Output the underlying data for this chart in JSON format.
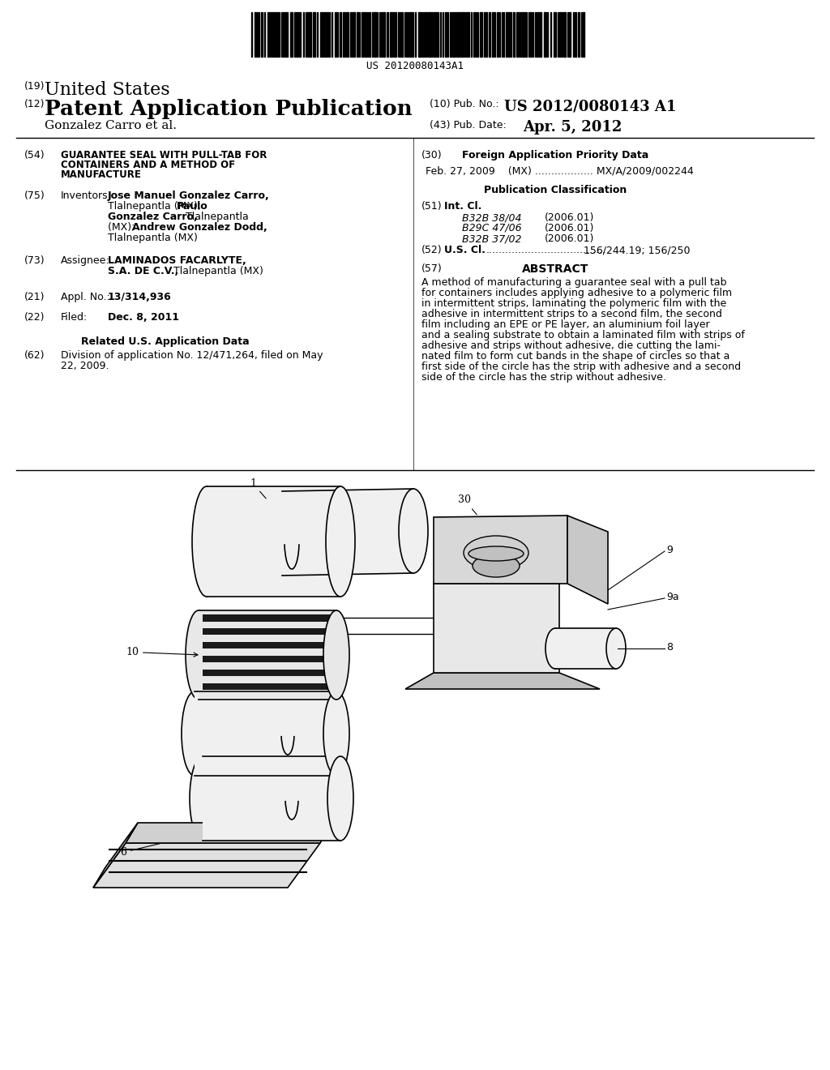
{
  "background_color": "#ffffff",
  "barcode_text": "US 20120080143A1",
  "header": {
    "country_label": "(19)",
    "country": "United States",
    "type_label": "(12)",
    "type": "Patent Application Publication",
    "pub_no_label": "(10) Pub. No.:",
    "pub_no": "US 2012/0080143 A1",
    "inventor_line": "Gonzalez Carro et al.",
    "pub_date_label": "(43) Pub. Date:",
    "pub_date": "Apr. 5, 2012"
  },
  "left_col": {
    "title_num": "(54)",
    "inventors_num": "(75)",
    "inventors_label": "Inventors:",
    "assignee_num": "(73)",
    "assignee_label": "Assignee:",
    "appl_num": "(21)",
    "appl_label": "Appl. No.:",
    "appl_value": "13/314,936",
    "filed_num": "(22)",
    "filed_label": "Filed:",
    "filed_value": "Dec. 8, 2011",
    "related_header": "Related U.S. Application Data",
    "related_num": "(62)",
    "related_line1": "Division of application No. 12/471,264, filed on May",
    "related_line2": "22, 2009."
  },
  "right_col": {
    "foreign_num": "(30)",
    "foreign_header": "Foreign Application Priority Data",
    "foreign_entry": "Feb. 27, 2009    (MX) .................. MX/A/2009/002244",
    "pub_class_header": "Publication Classification",
    "intcl_num": "(51)",
    "intcl_label": "Int. Cl.",
    "intcl_entries": [
      [
        "B32B 38/04",
        "(2006.01)"
      ],
      [
        "B29C 47/06",
        "(2006.01)"
      ],
      [
        "B32B 37/02",
        "(2006.01)"
      ]
    ],
    "uscl_num": "(52)",
    "uscl_label": "U.S. Cl.",
    "uscl_dots": ".....................................",
    "uscl_value": "156/244.19; 156/250",
    "abstract_num": "(57)",
    "abstract_header": "ABSTRACT",
    "abstract_lines": [
      "A method of manufacturing a guarantee seal with a pull tab",
      "for containers includes applying adhesive to a polymeric film",
      "in intermittent strips, laminating the polymeric film with the",
      "adhesive in intermittent strips to a second film, the second",
      "film including an EPE or PE layer, an aluminium foil layer",
      "and a sealing substrate to obtain a laminated film with strips of",
      "adhesive and strips without adhesive, die cutting the lami-",
      "nated film to form cut bands in the shape of circles so that a",
      "first side of the circle has the strip with adhesive and a second",
      "side of the circle has the strip without adhesive."
    ]
  },
  "diagram_labels": {
    "label_1": "1",
    "label_6": "6",
    "label_8": "8",
    "label_9": "9",
    "label_9a": "9a",
    "label_10": "10",
    "label_30": "30"
  }
}
